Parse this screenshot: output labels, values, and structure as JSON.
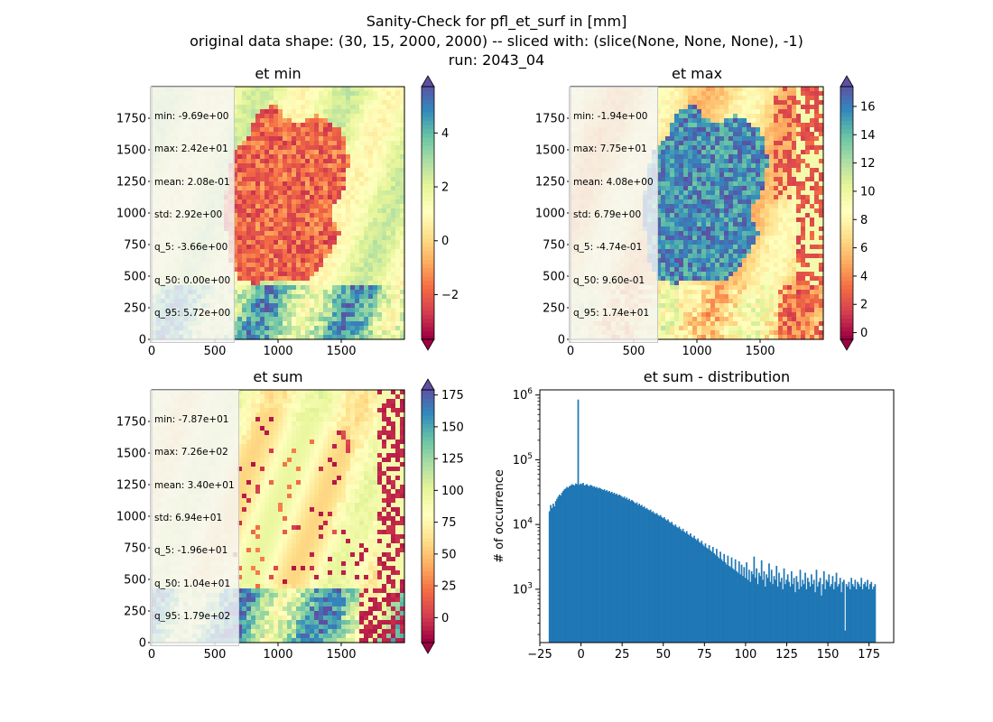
{
  "figure": {
    "suptitle_lines": [
      "Sanity-Check for pfl_et_surf in [mm]",
      "original data shape: (30, 15, 2000, 2000) -- sliced with: (slice(None, None, None), -1)",
      "run: 2043_04"
    ]
  },
  "colors": {
    "hist_bar": "#1f77b4",
    "spectral": [
      "#9e0142",
      "#d53e4f",
      "#f46d43",
      "#fdae61",
      "#fee08b",
      "#ffffbf",
      "#e6f598",
      "#abdda4",
      "#66c2a5",
      "#3288bd",
      "#5e4fa2"
    ]
  },
  "chart_data": [
    {
      "type": "heatmap",
      "title": "et min",
      "x_ticks": [
        "0",
        "500",
        "1000",
        "1500"
      ],
      "y_ticks": [
        "0",
        "250",
        "500",
        "750",
        "1000",
        "1250",
        "1500",
        "1750"
      ],
      "xlim": [
        0,
        2000
      ],
      "ylim": [
        0,
        2000
      ],
      "colorbar": {
        "cmap": "Spectral",
        "vmin": -3.66,
        "vmax": 5.72,
        "extend": "both",
        "ticks": [
          "−2",
          "0",
          "2",
          "4"
        ],
        "tick_values": [
          -2,
          0,
          2,
          4
        ]
      },
      "stats": [
        "min: -9.69e+00",
        "max: 2.42e+01",
        "mean: 2.08e-01",
        "std: 2.92e+00",
        "q_5: -3.66e+00",
        "q_50: 0.00e+00",
        "q_95: 5.72e+00"
      ]
    },
    {
      "type": "heatmap",
      "title": "et max",
      "x_ticks": [
        "0",
        "500",
        "1000",
        "1500"
      ],
      "y_ticks": [
        "0",
        "250",
        "500",
        "750",
        "1000",
        "1250",
        "1500",
        "1750"
      ],
      "xlim": [
        0,
        2000
      ],
      "ylim": [
        0,
        2000
      ],
      "colorbar": {
        "cmap": "Spectral",
        "vmin": -0.474,
        "vmax": 17.4,
        "extend": "both",
        "ticks": [
          "0",
          "2",
          "4",
          "6",
          "8",
          "10",
          "12",
          "14",
          "16"
        ],
        "tick_values": [
          0,
          2,
          4,
          6,
          8,
          10,
          12,
          14,
          16
        ]
      },
      "stats": [
        "min: -1.94e+00",
        "max: 7.75e+01",
        "mean: 4.08e+00",
        "std: 6.79e+00",
        "q_5: -4.74e-01",
        "q_50: 9.60e-01",
        "q_95: 1.74e+01"
      ]
    },
    {
      "type": "heatmap",
      "title": "et sum",
      "x_ticks": [
        "0",
        "500",
        "1000",
        "1500"
      ],
      "y_ticks": [
        "0",
        "250",
        "500",
        "750",
        "1000",
        "1250",
        "1500",
        "1750"
      ],
      "xlim": [
        0,
        2000
      ],
      "ylim": [
        0,
        2000
      ],
      "colorbar": {
        "cmap": "Spectral",
        "vmin": -19.6,
        "vmax": 179,
        "extend": "both",
        "ticks": [
          "0",
          "25",
          "50",
          "75",
          "100",
          "125",
          "150",
          "175"
        ],
        "tick_values": [
          0,
          25,
          50,
          75,
          100,
          125,
          150,
          175
        ]
      },
      "stats": [
        "min: -7.87e+01",
        "max: 7.26e+02",
        "mean: 3.40e+01",
        "std: 6.94e+01",
        "q_5: -1.96e+01",
        "q_50: 1.04e+01",
        "q_95: 1.79e+02"
      ]
    },
    {
      "type": "bar",
      "title": "et sum - distribution",
      "ylabel": "# of occurrence",
      "yscale": "log",
      "xlim": [
        -25,
        190
      ],
      "ylim": [
        150,
        1200000
      ],
      "x_ticks": [
        "−25",
        "0",
        "25",
        "50",
        "75",
        "100",
        "125",
        "150",
        "175"
      ],
      "x_tick_values": [
        -25,
        0,
        25,
        50,
        75,
        100,
        125,
        150,
        175
      ],
      "y_ticks": [
        "10^3",
        "10^4",
        "10^5",
        "10^6"
      ],
      "y_tick_values": [
        1000,
        10000,
        100000,
        1000000
      ],
      "x_range": [
        -19.6,
        179
      ],
      "values": [
        16000,
        20000,
        18000,
        21000,
        19000,
        23000,
        25000,
        27000,
        29000,
        28000,
        31000,
        33000,
        35000,
        36000,
        38000,
        37000,
        39000,
        40000,
        42000,
        41000,
        40000,
        43000,
        42000,
        850000,
        41000,
        43000,
        42000,
        44000,
        40000,
        41000,
        42000,
        40000,
        39000,
        41000,
        40000,
        38000,
        39000,
        37000,
        38000,
        36000,
        37000,
        36000,
        35000,
        34000,
        35000,
        33000,
        34000,
        32000,
        33000,
        31000,
        32000,
        30000,
        31000,
        29000,
        30000,
        28000,
        29000,
        28000,
        27000,
        26000,
        27000,
        25000,
        26000,
        24000,
        25000,
        23000,
        24000,
        23000,
        22000,
        21000,
        22000,
        20000,
        21000,
        19500,
        20000,
        18500,
        19000,
        17500,
        18000,
        17000,
        16500,
        17000,
        15500,
        16000,
        15000,
        14500,
        15000,
        14000,
        13500,
        14000,
        13000,
        12500,
        13000,
        12000,
        11500,
        12000,
        11000,
        10500,
        11000,
        10000,
        9500,
        10000,
        9200,
        8800,
        9300,
        8500,
        8000,
        8600,
        7800,
        7400,
        7900,
        7100,
        6800,
        7300,
        6500,
        6200,
        6700,
        6000,
        5700,
        6100,
        5400,
        5200,
        5600,
        4900,
        4600,
        5100,
        4400,
        4200,
        4800,
        4000,
        3800,
        4500,
        3600,
        3400,
        4200,
        3200,
        3000,
        3800,
        2900,
        2700,
        3500,
        2600,
        2400,
        3300,
        2300,
        2200,
        3100,
        2100,
        2000,
        2900,
        1900,
        1800,
        2700,
        1700,
        2400,
        1600,
        2200,
        1500,
        2600,
        1400,
        2000,
        1300,
        1900,
        1700,
        3200,
        1500,
        2100,
        1200,
        1800,
        1600,
        2800,
        1400,
        1900,
        1100,
        1700,
        1500,
        2500,
        1300,
        2000,
        1200,
        1600,
        1400,
        2300,
        1100,
        1800,
        1300,
        1500,
        1000,
        2100,
        1200,
        1400,
        1700,
        1300,
        1100,
        1900,
        1200,
        1500,
        900,
        1600,
        1300,
        1000,
        2000,
        1100,
        1400,
        1200,
        1800,
        1000,
        1500,
        1300,
        1100,
        1700,
        1200,
        1400,
        900,
        2000,
        1100,
        1300,
        1500,
        800,
        1200,
        1900,
        1000,
        1400,
        1300,
        1700,
        1100,
        1200,
        1600,
        1000,
        1300,
        1800,
        1100,
        1200,
        1500,
        900,
        1300,
        1400,
        230,
        1200,
        1100,
        1300,
        1000,
        1500,
        1200,
        1100,
        1400,
        1000,
        1300,
        1200,
        1100,
        1500,
        1000,
        1200,
        1300,
        1100,
        1400,
        1000,
        1200,
        1300,
        1000,
        1100,
        1200
      ]
    }
  ]
}
